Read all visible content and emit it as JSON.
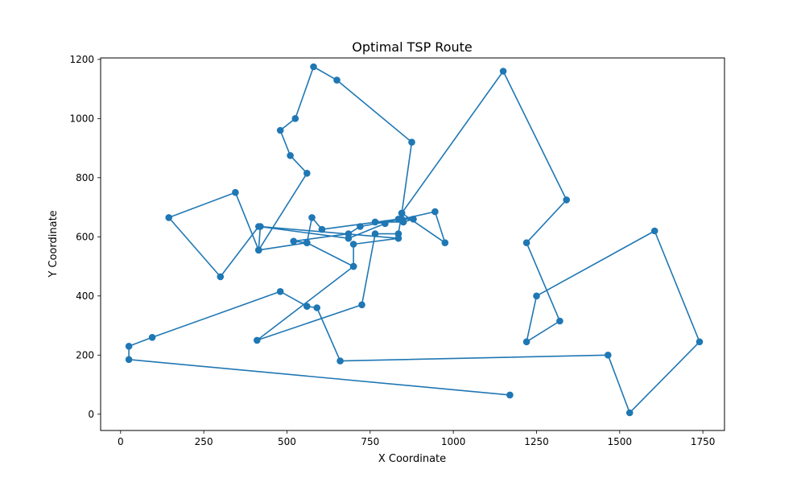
{
  "chart_data": {
    "type": "line",
    "title": "Optimal TSP Route",
    "xlabel": "X Coordinate",
    "ylabel": "Y Coordinate",
    "xlim": [
      -60,
      1815
    ],
    "ylim": [
      -55,
      1205
    ],
    "xticks": [
      0,
      250,
      500,
      750,
      1000,
      1250,
      1500,
      1750
    ],
    "yticks": [
      0,
      200,
      400,
      600,
      800,
      1000,
      1200
    ],
    "grid": false,
    "color": "#1f77b4",
    "series": [
      {
        "marker": "circle",
        "x": [
          1170,
          25,
          25,
          95,
          480,
          560,
          590,
          660,
          1465,
          1530,
          1740,
          1605,
          1250,
          1220,
          1320,
          1220,
          1340,
          1150,
          845,
          975,
          945,
          845,
          720,
          685,
          520,
          560,
          415,
          420,
          835,
          700,
          700,
          560,
          575,
          605,
          835,
          880,
          850,
          765,
          795,
          685,
          415,
          300,
          145,
          345,
          415,
          560,
          510,
          480,
          525,
          580,
          650,
          875,
          845,
          835,
          765,
          725,
          410,
          700
        ],
        "y": [
          65,
          185,
          230,
          260,
          415,
          365,
          360,
          180,
          200,
          5,
          245,
          620,
          400,
          245,
          315,
          580,
          725,
          1160,
          680,
          580,
          685,
          660,
          635,
          610,
          585,
          580,
          555,
          635,
          595,
          575,
          500,
          580,
          665,
          625,
          660,
          660,
          650,
          650,
          645,
          595,
          635,
          465,
          665,
          750,
          555,
          815,
          875,
          960,
          1000,
          1175,
          1130,
          920,
          680,
          610,
          610,
          370,
          250,
          500
        ]
      }
    ]
  }
}
